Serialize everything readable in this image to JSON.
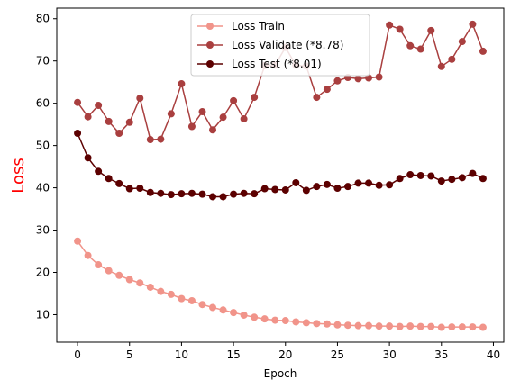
{
  "chart_data": {
    "type": "line",
    "xlabel": "Epoch",
    "ylabel": "Loss",
    "ylabel_color": "#ff0000",
    "xlim": [
      -2,
      41
    ],
    "ylim": [
      3.5,
      82.5
    ],
    "xticks": [
      0,
      5,
      10,
      15,
      20,
      25,
      30,
      35,
      40
    ],
    "yticks": [
      10,
      20,
      30,
      40,
      50,
      60,
      70,
      80
    ],
    "grid": false,
    "legend_position": "upper center",
    "x": [
      0,
      1,
      2,
      3,
      4,
      5,
      6,
      7,
      8,
      9,
      10,
      11,
      12,
      13,
      14,
      15,
      16,
      17,
      18,
      19,
      20,
      21,
      22,
      23,
      24,
      25,
      26,
      27,
      28,
      29,
      30,
      31,
      32,
      33,
      34,
      35,
      36,
      37,
      38,
      39
    ],
    "series": [
      {
        "name": "Loss Train",
        "color": "#f1948a",
        "values": [
          27.4,
          24.0,
          21.8,
          20.4,
          19.3,
          18.3,
          17.5,
          16.5,
          15.5,
          14.8,
          13.8,
          13.3,
          12.4,
          11.7,
          11.1,
          10.5,
          9.9,
          9.4,
          9.0,
          8.7,
          8.6,
          8.3,
          8.1,
          7.9,
          7.8,
          7.6,
          7.5,
          7.4,
          7.4,
          7.3,
          7.3,
          7.2,
          7.3,
          7.2,
          7.2,
          7.0,
          7.1,
          7.1,
          7.1,
          7.0
        ]
      },
      {
        "name": "Loss Validate (*8.78)",
        "color": "#a93f3f",
        "values": [
          60.2,
          56.8,
          59.5,
          55.7,
          52.9,
          55.5,
          61.2,
          51.4,
          51.5,
          57.5,
          64.6,
          54.5,
          58.0,
          53.7,
          56.7,
          60.6,
          56.3,
          61.4,
          68.9,
          69.0,
          73.2,
          69.0,
          68.8,
          61.4,
          63.3,
          65.3,
          66.1,
          65.8,
          66.0,
          66.2,
          78.5,
          77.5,
          73.6,
          72.8,
          77.2,
          68.7,
          70.4,
          74.6,
          78.7,
          72.3
        ]
      },
      {
        "name": "Loss Test (*8.01)",
        "color": "#5c0000",
        "values": [
          52.9,
          47.1,
          43.9,
          42.2,
          41.0,
          39.8,
          39.9,
          38.9,
          38.7,
          38.4,
          38.6,
          38.7,
          38.5,
          37.9,
          37.9,
          38.5,
          38.7,
          38.6,
          39.8,
          39.6,
          39.5,
          41.2,
          39.4,
          40.3,
          40.8,
          39.9,
          40.3,
          41.1,
          41.1,
          40.6,
          40.7,
          42.2,
          43.1,
          42.9,
          42.8,
          41.6,
          42.0,
          42.4,
          43.4,
          42.2
        ]
      }
    ]
  }
}
